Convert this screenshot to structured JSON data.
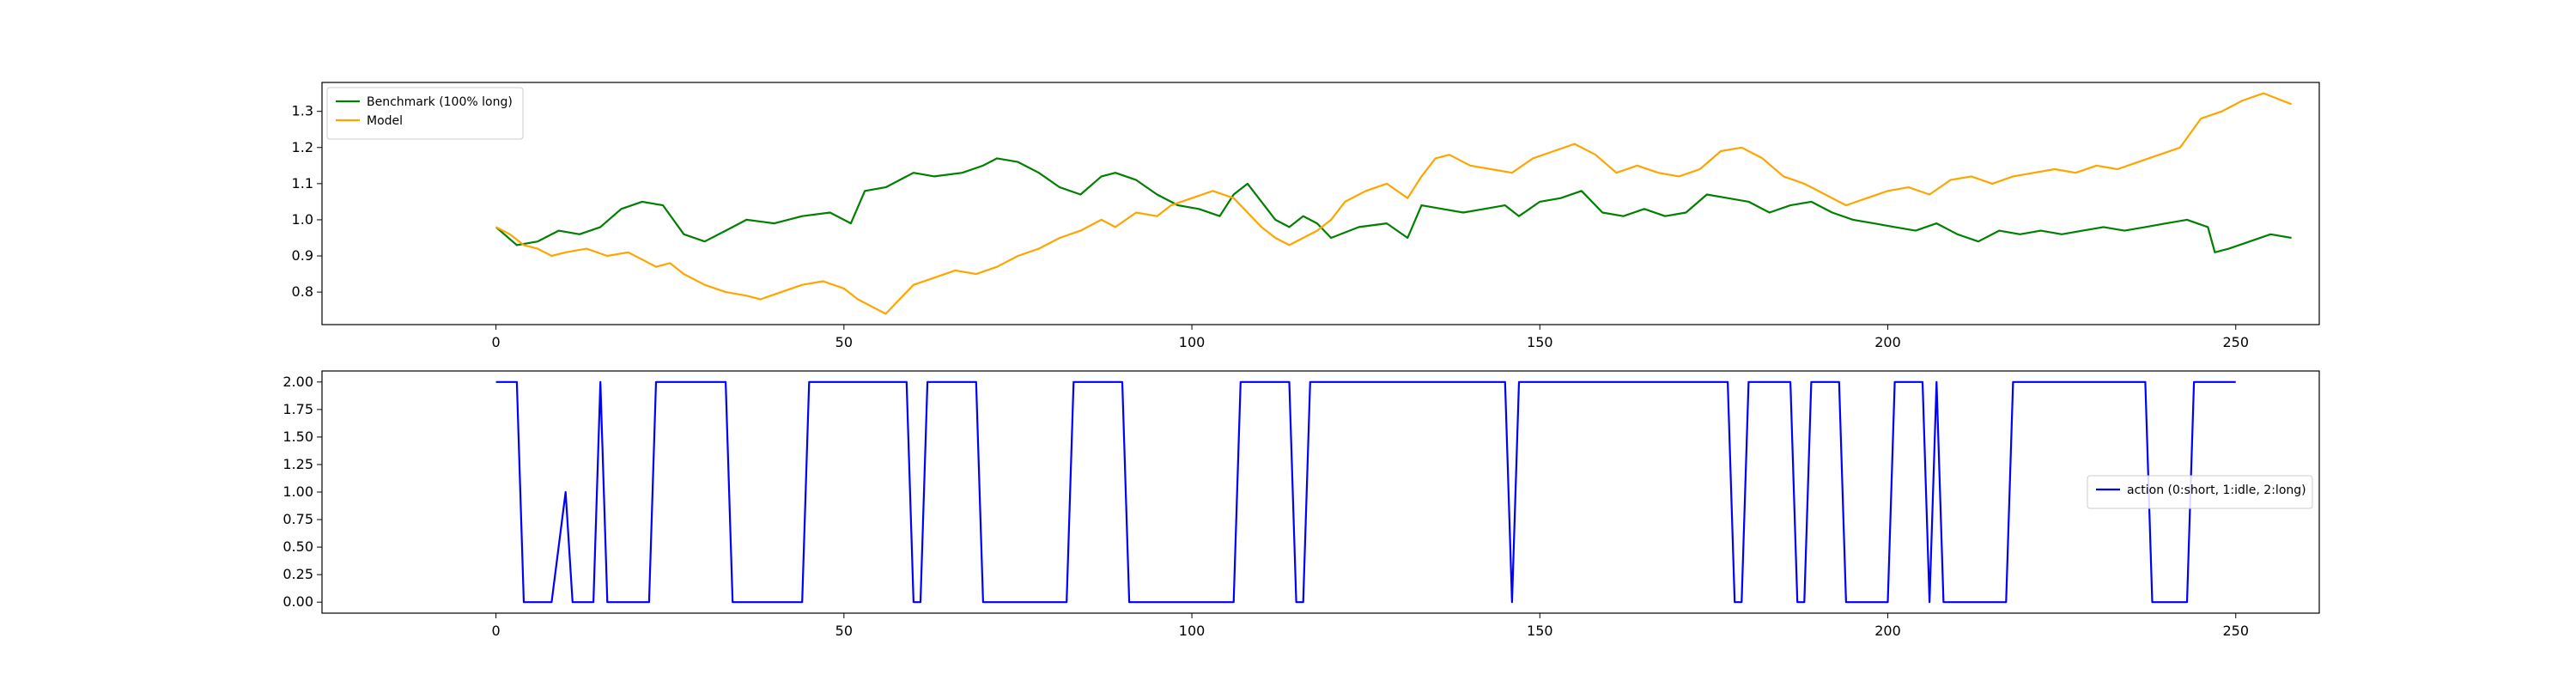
{
  "chart_data": [
    {
      "type": "line",
      "title": "",
      "xlabel": "",
      "ylabel": "",
      "xlim": [
        -25,
        262
      ],
      "ylim": [
        0.71,
        1.38
      ],
      "xticks": [
        0,
        50,
        100,
        150,
        200,
        250
      ],
      "yticks": [
        0.8,
        0.9,
        1.0,
        1.1,
        1.2,
        1.3
      ],
      "xtick_labels": [
        "0",
        "50",
        "100",
        "150",
        "200",
        "250"
      ],
      "ytick_labels": [
        "0.8",
        "0.9",
        "1.0",
        "1.1",
        "1.2",
        "1.3"
      ],
      "grid": false,
      "legend_position": "top-left",
      "series": [
        {
          "name": "Benchmark (100% long)",
          "color": "#008000",
          "points": [
            [
              0,
              0.98
            ],
            [
              3,
              0.93
            ],
            [
              6,
              0.94
            ],
            [
              9,
              0.97
            ],
            [
              12,
              0.96
            ],
            [
              15,
              0.98
            ],
            [
              18,
              1.03
            ],
            [
              21,
              1.05
            ],
            [
              24,
              1.04
            ],
            [
              27,
              0.96
            ],
            [
              30,
              0.94
            ],
            [
              33,
              0.97
            ],
            [
              36,
              1.0
            ],
            [
              40,
              0.99
            ],
            [
              44,
              1.01
            ],
            [
              48,
              1.02
            ],
            [
              51,
              0.99
            ],
            [
              53,
              1.08
            ],
            [
              56,
              1.09
            ],
            [
              58,
              1.11
            ],
            [
              60,
              1.13
            ],
            [
              63,
              1.12
            ],
            [
              67,
              1.13
            ],
            [
              70,
              1.15
            ],
            [
              72,
              1.17
            ],
            [
              75,
              1.16
            ],
            [
              78,
              1.13
            ],
            [
              81,
              1.09
            ],
            [
              84,
              1.07
            ],
            [
              87,
              1.12
            ],
            [
              89,
              1.13
            ],
            [
              92,
              1.11
            ],
            [
              95,
              1.07
            ],
            [
              98,
              1.04
            ],
            [
              101,
              1.03
            ],
            [
              104,
              1.01
            ],
            [
              106,
              1.07
            ],
            [
              108,
              1.1
            ],
            [
              110,
              1.05
            ],
            [
              112,
              1.0
            ],
            [
              114,
              0.98
            ],
            [
              116,
              1.01
            ],
            [
              118,
              0.99
            ],
            [
              120,
              0.95
            ],
            [
              124,
              0.98
            ],
            [
              128,
              0.99
            ],
            [
              131,
              0.95
            ],
            [
              133,
              1.04
            ],
            [
              136,
              1.03
            ],
            [
              139,
              1.02
            ],
            [
              142,
              1.03
            ],
            [
              145,
              1.04
            ],
            [
              147,
              1.01
            ],
            [
              150,
              1.05
            ],
            [
              153,
              1.06
            ],
            [
              156,
              1.08
            ],
            [
              159,
              1.02
            ],
            [
              162,
              1.01
            ],
            [
              165,
              1.03
            ],
            [
              168,
              1.01
            ],
            [
              171,
              1.02
            ],
            [
              174,
              1.07
            ],
            [
              177,
              1.06
            ],
            [
              180,
              1.05
            ],
            [
              183,
              1.02
            ],
            [
              186,
              1.04
            ],
            [
              189,
              1.05
            ],
            [
              192,
              1.02
            ],
            [
              195,
              1.0
            ],
            [
              198,
              0.99
            ],
            [
              201,
              0.98
            ],
            [
              204,
              0.97
            ],
            [
              207,
              0.99
            ],
            [
              210,
              0.96
            ],
            [
              213,
              0.94
            ],
            [
              216,
              0.97
            ],
            [
              219,
              0.96
            ],
            [
              222,
              0.97
            ],
            [
              225,
              0.96
            ],
            [
              228,
              0.97
            ],
            [
              231,
              0.98
            ],
            [
              234,
              0.97
            ],
            [
              237,
              0.98
            ],
            [
              240,
              0.99
            ],
            [
              243,
              1.0
            ],
            [
              246,
              0.98
            ],
            [
              247,
              0.91
            ],
            [
              249,
              0.92
            ],
            [
              252,
              0.94
            ],
            [
              255,
              0.96
            ],
            [
              258,
              0.95
            ]
          ]
        },
        {
          "name": "Model",
          "color": "#FFA500",
          "points": [
            [
              0,
              0.98
            ],
            [
              2,
              0.96
            ],
            [
              4,
              0.93
            ],
            [
              6,
              0.92
            ],
            [
              8,
              0.9
            ],
            [
              10,
              0.91
            ],
            [
              13,
              0.92
            ],
            [
              16,
              0.9
            ],
            [
              19,
              0.91
            ],
            [
              21,
              0.89
            ],
            [
              23,
              0.87
            ],
            [
              25,
              0.88
            ],
            [
              27,
              0.85
            ],
            [
              30,
              0.82
            ],
            [
              33,
              0.8
            ],
            [
              36,
              0.79
            ],
            [
              38,
              0.78
            ],
            [
              41,
              0.8
            ],
            [
              44,
              0.82
            ],
            [
              47,
              0.83
            ],
            [
              50,
              0.81
            ],
            [
              52,
              0.78
            ],
            [
              54,
              0.76
            ],
            [
              56,
              0.74
            ],
            [
              58,
              0.78
            ],
            [
              60,
              0.82
            ],
            [
              63,
              0.84
            ],
            [
              66,
              0.86
            ],
            [
              69,
              0.85
            ],
            [
              72,
              0.87
            ],
            [
              75,
              0.9
            ],
            [
              78,
              0.92
            ],
            [
              81,
              0.95
            ],
            [
              84,
              0.97
            ],
            [
              87,
              1.0
            ],
            [
              89,
              0.98
            ],
            [
              92,
              1.02
            ],
            [
              95,
              1.01
            ],
            [
              97,
              1.04
            ],
            [
              100,
              1.06
            ],
            [
              103,
              1.08
            ],
            [
              106,
              1.06
            ],
            [
              108,
              1.02
            ],
            [
              110,
              0.98
            ],
            [
              112,
              0.95
            ],
            [
              114,
              0.93
            ],
            [
              116,
              0.95
            ],
            [
              118,
              0.97
            ],
            [
              120,
              1.0
            ],
            [
              122,
              1.05
            ],
            [
              125,
              1.08
            ],
            [
              128,
              1.1
            ],
            [
              131,
              1.06
            ],
            [
              133,
              1.12
            ],
            [
              135,
              1.17
            ],
            [
              137,
              1.18
            ],
            [
              140,
              1.15
            ],
            [
              143,
              1.14
            ],
            [
              146,
              1.13
            ],
            [
              149,
              1.17
            ],
            [
              152,
              1.19
            ],
            [
              155,
              1.21
            ],
            [
              158,
              1.18
            ],
            [
              161,
              1.13
            ],
            [
              164,
              1.15
            ],
            [
              167,
              1.13
            ],
            [
              170,
              1.12
            ],
            [
              173,
              1.14
            ],
            [
              176,
              1.19
            ],
            [
              179,
              1.2
            ],
            [
              182,
              1.17
            ],
            [
              185,
              1.12
            ],
            [
              188,
              1.1
            ],
            [
              191,
              1.07
            ],
            [
              194,
              1.04
            ],
            [
              197,
              1.06
            ],
            [
              200,
              1.08
            ],
            [
              203,
              1.09
            ],
            [
              206,
              1.07
            ],
            [
              209,
              1.11
            ],
            [
              212,
              1.12
            ],
            [
              215,
              1.1
            ],
            [
              218,
              1.12
            ],
            [
              221,
              1.13
            ],
            [
              224,
              1.14
            ],
            [
              227,
              1.13
            ],
            [
              230,
              1.15
            ],
            [
              233,
              1.14
            ],
            [
              236,
              1.16
            ],
            [
              239,
              1.18
            ],
            [
              242,
              1.2
            ],
            [
              245,
              1.28
            ],
            [
              248,
              1.3
            ],
            [
              251,
              1.33
            ],
            [
              254,
              1.35
            ],
            [
              258,
              1.32
            ]
          ]
        }
      ]
    },
    {
      "type": "line",
      "title": "",
      "xlabel": "",
      "ylabel": "",
      "xlim": [
        -25,
        262
      ],
      "ylim": [
        -0.1,
        2.1
      ],
      "xticks": [
        0,
        50,
        100,
        150,
        200,
        250
      ],
      "yticks": [
        0.0,
        0.25,
        0.5,
        0.75,
        1.0,
        1.25,
        1.5,
        1.75,
        2.0
      ],
      "xtick_labels": [
        "0",
        "50",
        "100",
        "150",
        "200",
        "250"
      ],
      "ytick_labels": [
        "0.00",
        "0.25",
        "0.50",
        "0.75",
        "1.00",
        "1.25",
        "1.50",
        "1.75",
        "2.00"
      ],
      "grid": false,
      "legend_position": "center-right",
      "series": [
        {
          "name": "action (0:short, 1:idle, 2:long)",
          "color": "#0000FF",
          "points": [
            [
              0,
              2
            ],
            [
              3,
              2
            ],
            [
              4,
              0
            ],
            [
              8,
              0
            ],
            [
              10,
              1
            ],
            [
              11,
              0
            ],
            [
              14,
              0
            ],
            [
              15,
              2
            ],
            [
              16,
              0
            ],
            [
              22,
              0
            ],
            [
              23,
              2
            ],
            [
              33,
              2
            ],
            [
              34,
              0
            ],
            [
              44,
              0
            ],
            [
              45,
              2
            ],
            [
              59,
              2
            ],
            [
              60,
              0
            ],
            [
              61,
              0
            ],
            [
              62,
              2
            ],
            [
              69,
              2
            ],
            [
              70,
              0
            ],
            [
              82,
              0
            ],
            [
              83,
              2
            ],
            [
              90,
              2
            ],
            [
              91,
              0
            ],
            [
              106,
              0
            ],
            [
              107,
              2
            ],
            [
              114,
              2
            ],
            [
              115,
              0
            ],
            [
              116,
              0
            ],
            [
              117,
              2
            ],
            [
              145,
              2
            ],
            [
              146,
              0
            ],
            [
              147,
              2
            ],
            [
              177,
              2
            ],
            [
              178,
              0
            ],
            [
              179,
              0
            ],
            [
              180,
              2
            ],
            [
              186,
              2
            ],
            [
              187,
              0
            ],
            [
              188,
              0
            ],
            [
              189,
              2
            ],
            [
              193,
              2
            ],
            [
              194,
              0
            ],
            [
              200,
              0
            ],
            [
              201,
              2
            ],
            [
              205,
              2
            ],
            [
              206,
              0
            ],
            [
              207,
              2
            ],
            [
              208,
              0
            ],
            [
              217,
              0
            ],
            [
              218,
              2
            ],
            [
              237,
              2
            ],
            [
              238,
              0
            ],
            [
              243,
              0
            ],
            [
              244,
              2
            ],
            [
              250,
              2
            ]
          ]
        }
      ]
    }
  ]
}
